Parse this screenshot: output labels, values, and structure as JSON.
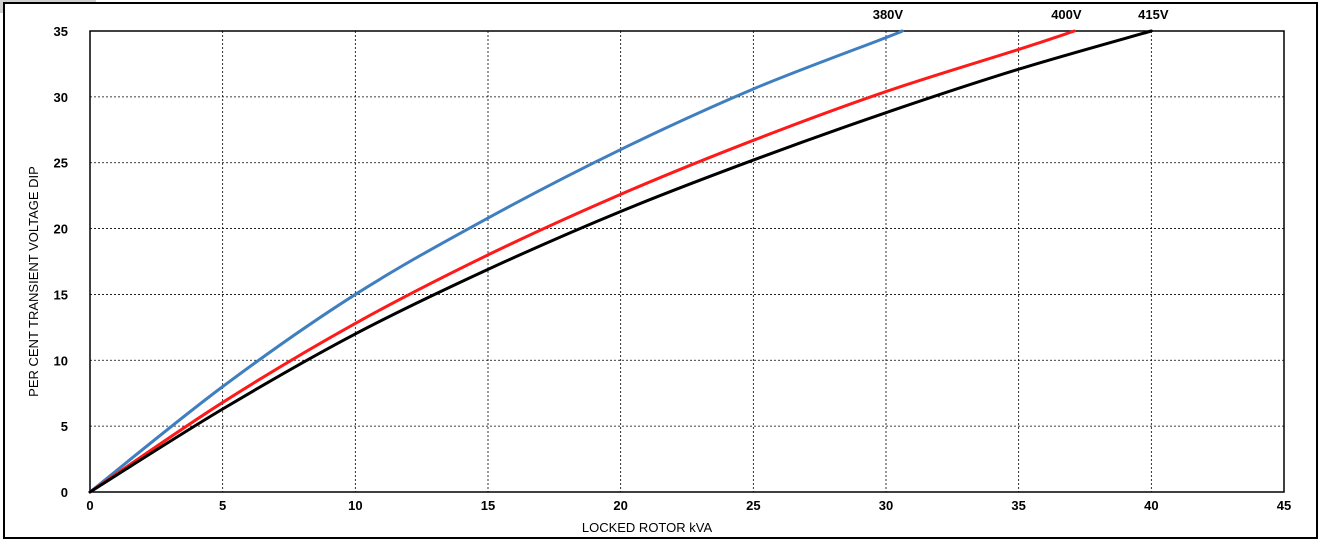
{
  "chart_data": {
    "type": "line",
    "title": "",
    "xlabel": "LOCKED ROTOR kVA",
    "ylabel": "PER CENT TRANSIENT VOLTAGE DIP",
    "xlim": [
      0,
      45
    ],
    "ylim": [
      0,
      35
    ],
    "x_ticks": [
      "0",
      "5",
      "10",
      "15",
      "20",
      "25",
      "30",
      "35",
      "40",
      "45"
    ],
    "y_ticks": [
      "0",
      "5",
      "10",
      "15",
      "20",
      "25",
      "30",
      "35"
    ],
    "grid": true,
    "legend": "none",
    "series": [
      {
        "name": "380V",
        "color": "#3f7fbf",
        "x": [
          0,
          5,
          10,
          15,
          20,
          25,
          30,
          30.6
        ],
        "y": [
          0,
          8.0,
          15.0,
          20.8,
          26.0,
          30.6,
          34.5,
          35
        ]
      },
      {
        "name": "400V",
        "color": "#ff1a1a",
        "x": [
          0,
          5,
          10,
          15,
          20,
          25,
          30,
          35,
          37.1
        ],
        "y": [
          0,
          6.8,
          12.8,
          18.0,
          22.6,
          26.7,
          30.4,
          33.6,
          35
        ]
      },
      {
        "name": "415V",
        "color": "#000000",
        "x": [
          0,
          5,
          10,
          15,
          20,
          25,
          30,
          35,
          40
        ],
        "y": [
          0,
          6.3,
          12.0,
          16.9,
          21.3,
          25.2,
          28.8,
          32.1,
          35
        ]
      }
    ]
  }
}
